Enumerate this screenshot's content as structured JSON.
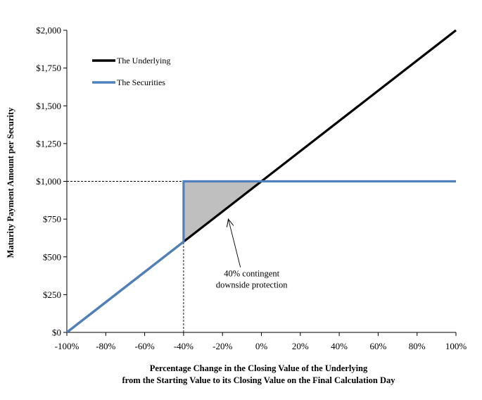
{
  "chart_data": {
    "type": "line",
    "title": "",
    "xlabel": [
      "Percentage Change in the Closing Value of the Underlying",
      "from the Starting Value to its Closing Value on the Final Calculation Day"
    ],
    "ylabel": "Maturity Payment Amount per Security",
    "xlim": [
      -100,
      100
    ],
    "ylim": [
      0,
      2000
    ],
    "x_ticks": [
      -100,
      -80,
      -60,
      -40,
      -20,
      0,
      20,
      40,
      60,
      80,
      100
    ],
    "x_tick_labels": [
      "-100%",
      "-80%",
      "-60%",
      "-40%",
      "-20%",
      "0%",
      "20%",
      "40%",
      "60%",
      "80%",
      "100%"
    ],
    "y_ticks": [
      0,
      250,
      500,
      750,
      1000,
      1250,
      1500,
      1750,
      2000
    ],
    "y_tick_labels": [
      "$0",
      "$250",
      "$500",
      "$750",
      "$1,000",
      "$1,250",
      "$1,500",
      "$1,750",
      "$2,000"
    ],
    "grid": false,
    "legend_position": "top-left",
    "series": [
      {
        "name": "The Underlying",
        "color": "#000000",
        "points": [
          [
            -100,
            0
          ],
          [
            100,
            2000
          ]
        ]
      },
      {
        "name": "The Securities",
        "color": "#4F81BD",
        "points": [
          [
            -100,
            0
          ],
          [
            -40,
            600
          ],
          [
            -40,
            1000
          ],
          [
            100,
            1000
          ]
        ]
      }
    ],
    "shaded_region": {
      "color": "#BFBFBF",
      "points": [
        [
          -40,
          600
        ],
        [
          -40,
          1000
        ],
        [
          0,
          1000
        ]
      ]
    },
    "reference_lines": [
      {
        "points": [
          [
            -100,
            1000
          ],
          [
            -40,
            1000
          ]
        ],
        "style": "dashed"
      },
      {
        "points": [
          [
            -40,
            0
          ],
          [
            -40,
            600
          ]
        ],
        "style": "dashed"
      }
    ],
    "annotation": {
      "lines": [
        "40% contingent",
        "downside protection"
      ],
      "text_at": [
        -5,
        370
      ],
      "arrow_to": [
        -17,
        750
      ]
    }
  }
}
